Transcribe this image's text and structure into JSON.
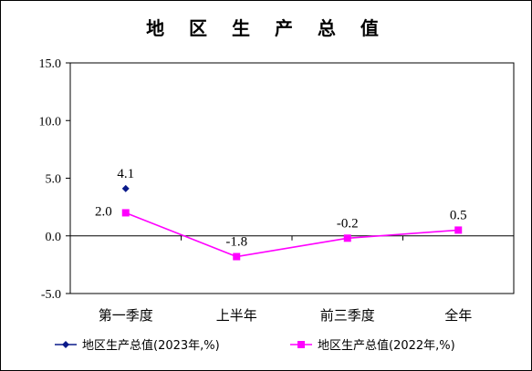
{
  "chart_data": {
    "type": "line",
    "title": "地 区 生 产 总 值",
    "categories": [
      "第一季度",
      "上半年",
      "前三季度",
      "全年"
    ],
    "yticks": [
      "15.0",
      "10.0",
      "5.0",
      "0.0",
      "-5.0"
    ],
    "ylim": [
      -5,
      15
    ],
    "grid": false,
    "legend_position": "bottom",
    "series": [
      {
        "name": "地区生产总值(2023年,%)",
        "color": "#0a1a8a",
        "marker": "diamond",
        "values": [
          4.1,
          null,
          null,
          null
        ],
        "labels": [
          "4.1",
          null,
          null,
          null
        ]
      },
      {
        "name": "地区生产总值(2022年,%)",
        "color": "#ff00ff",
        "marker": "square",
        "values": [
          2.0,
          -1.8,
          -0.2,
          0.5
        ],
        "labels": [
          "2.0",
          "-1.8",
          "-0.2",
          "0.5"
        ]
      }
    ]
  }
}
